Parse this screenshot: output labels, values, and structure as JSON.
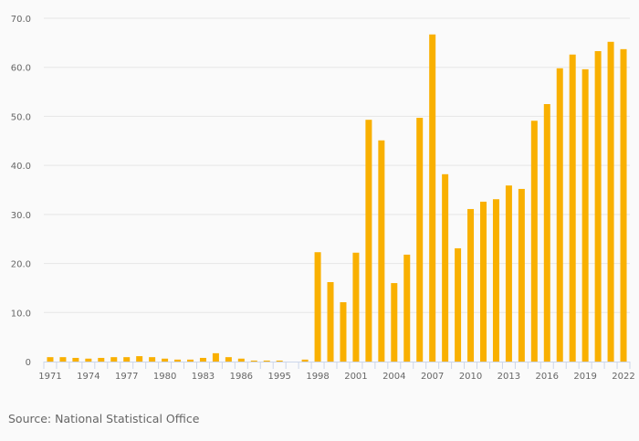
{
  "chart_data": {
    "type": "bar",
    "title": "",
    "xlabel": "",
    "ylabel": "",
    "ylim": [
      0,
      70
    ],
    "yticks": [
      "0",
      "10.0",
      "20.0",
      "30.0",
      "40.0",
      "50.0",
      "60.0",
      "70.0"
    ],
    "grid": true,
    "bar_color": "#f9b000",
    "categories": [
      "1971",
      "1972",
      "1973",
      "1974",
      "1975",
      "1976",
      "1977",
      "1978",
      "1979",
      "1980",
      "1981",
      "1982",
      "1983",
      "1984",
      "1985",
      "1986",
      "1988",
      "1992",
      "1995",
      "1996",
      "1997",
      "1998",
      "1999",
      "2000",
      "2001",
      "2002",
      "2003",
      "2004",
      "2005",
      "2006",
      "2007",
      "2008",
      "2009",
      "2010",
      "2011",
      "2012",
      "2013",
      "2014",
      "2015",
      "2016",
      "2017",
      "2018",
      "2019",
      "2020",
      "2021",
      "2022"
    ],
    "shown_xticks": [
      "1971",
      "1974",
      "1977",
      "1980",
      "1983",
      "1986",
      "1995",
      "1998",
      "2001",
      "2004",
      "2007",
      "2010",
      "2013",
      "2016",
      "2019",
      "2022"
    ],
    "values": [
      0.9,
      0.9,
      0.75,
      0.6,
      0.75,
      0.9,
      0.9,
      1.1,
      0.9,
      0.6,
      0.4,
      0.4,
      0.75,
      1.7,
      0.9,
      0.6,
      0.2,
      0.2,
      0.2,
      0,
      0.4,
      22.3,
      16.2,
      12.1,
      22.2,
      49.3,
      45.1,
      16.0,
      21.8,
      49.7,
      66.7,
      38.2,
      23.1,
      31.1,
      32.6,
      33.1,
      35.9,
      35.2,
      49.1,
      52.5,
      59.8,
      62.6,
      59.6,
      63.3,
      65.2,
      63.7
    ]
  },
  "source": "Source: National Statistical Office"
}
